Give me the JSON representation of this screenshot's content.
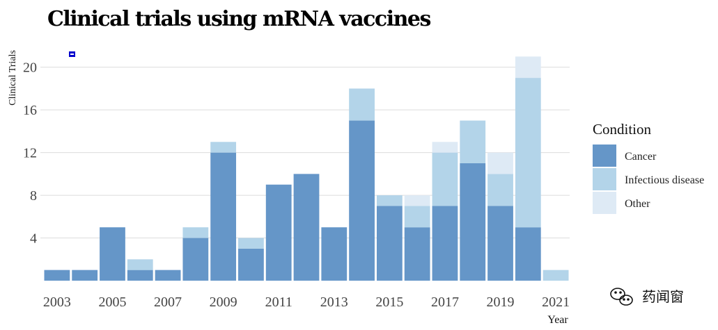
{
  "chart_data": {
    "type": "bar",
    "stacked": true,
    "title": "Clinical trials using mRNA vaccines",
    "xlabel": "Year",
    "ylabel": "Clinical Trials",
    "ylim": [
      0,
      22
    ],
    "yticks": [
      4,
      8,
      12,
      16,
      20
    ],
    "xticks": [
      "2003",
      "2005",
      "2007",
      "2009",
      "2011",
      "2013",
      "2015",
      "2017",
      "2019",
      "2021"
    ],
    "categories": [
      "2003",
      "2004",
      "2005",
      "2006",
      "2007",
      "2008",
      "2009",
      "2010",
      "2011",
      "2012",
      "2013",
      "2014",
      "2015",
      "2016",
      "2017",
      "2018",
      "2019",
      "2020",
      "2021"
    ],
    "grid": true,
    "legend_title": "Condition",
    "legend_position": "right",
    "series": [
      {
        "name": "Cancer",
        "color": "#6596c8",
        "values": [
          1,
          1,
          5,
          1,
          1,
          4,
          12,
          3,
          9,
          10,
          5,
          15,
          7,
          5,
          7,
          11,
          7,
          5,
          0
        ]
      },
      {
        "name": "Infectious disease",
        "color": "#b3d4e9",
        "values": [
          0,
          0,
          0,
          1,
          0,
          1,
          1,
          1,
          0,
          0,
          0,
          3,
          1,
          2,
          5,
          4,
          3,
          14,
          1
        ]
      },
      {
        "name": "Other",
        "color": "#deeaf5",
        "values": [
          0,
          0,
          0,
          0,
          0,
          0,
          0,
          0,
          0,
          0,
          0,
          0,
          0,
          1,
          1,
          0,
          2,
          2,
          0
        ]
      }
    ]
  },
  "watermark": {
    "text": "药闻窗",
    "icon": "wechat-icon"
  }
}
